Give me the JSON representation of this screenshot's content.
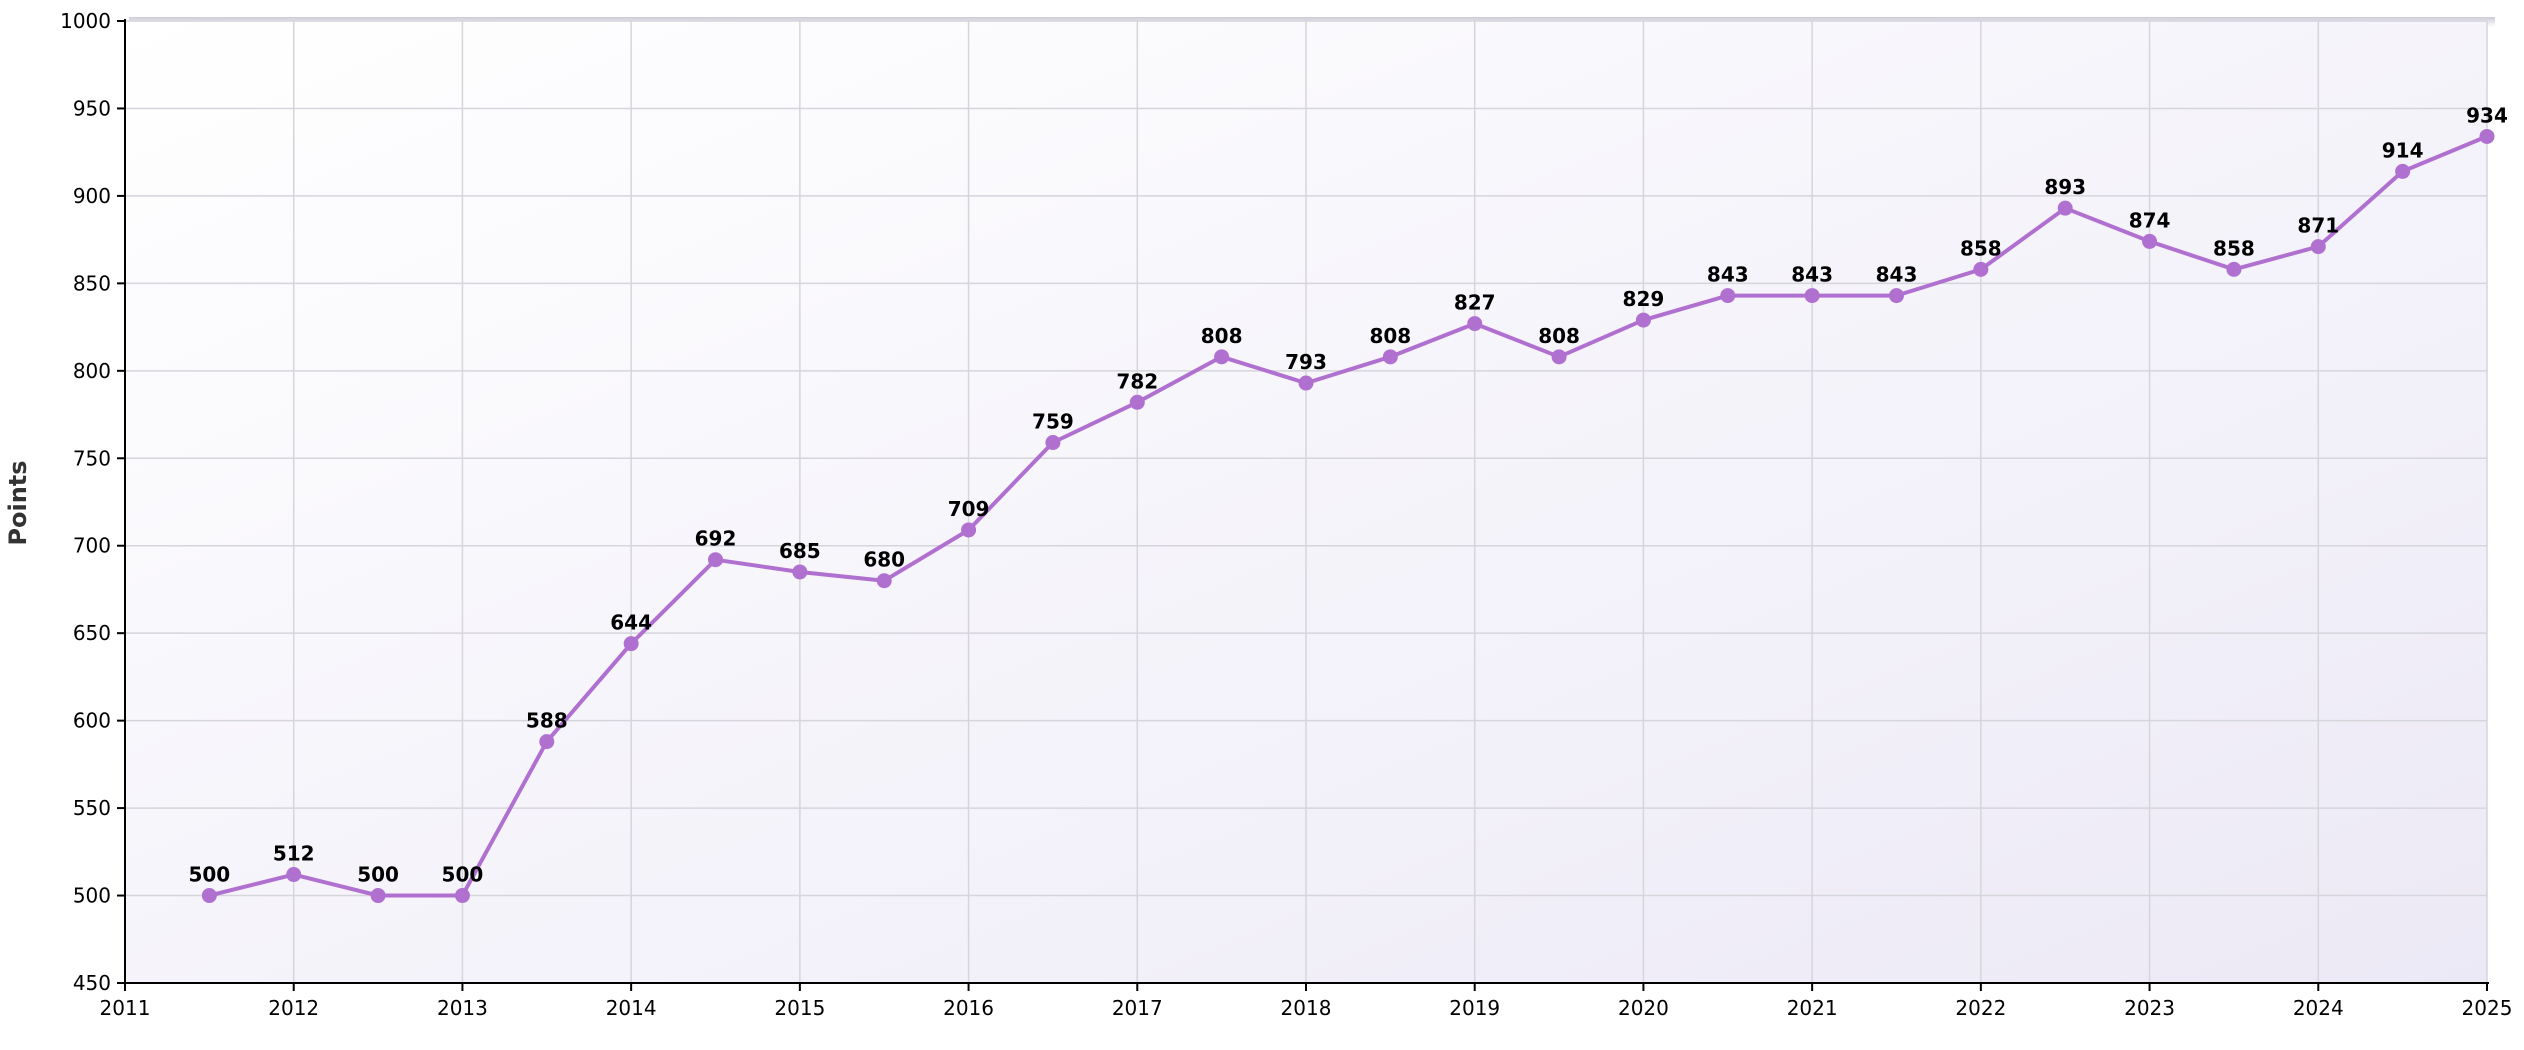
{
  "chart_data": {
    "type": "line",
    "title": "",
    "xlabel": "",
    "ylabel": "Points",
    "xlim": [
      2011,
      2025
    ],
    "ylim": [
      450,
      1000
    ],
    "x_ticks": [
      2011,
      2012,
      2013,
      2014,
      2015,
      2016,
      2017,
      2018,
      2019,
      2020,
      2021,
      2022,
      2023,
      2024,
      2025
    ],
    "y_ticks": [
      450,
      500,
      550,
      600,
      650,
      700,
      750,
      800,
      850,
      900,
      950,
      1000
    ],
    "grid": true,
    "legend": "none",
    "series": [
      {
        "color": "#b070d0",
        "x": [
          2011.5,
          2012,
          2012.5,
          2013,
          2013.5,
          2014,
          2014.5,
          2015,
          2015.5,
          2016,
          2016.5,
          2017,
          2017.5,
          2018,
          2018.5,
          2019,
          2019.5,
          2020,
          2020.5,
          2021,
          2021.5,
          2022,
          2022.5,
          2023,
          2023.5,
          2024,
          2024.5,
          2025
        ],
        "values": [
          500,
          512,
          500,
          500,
          588,
          644,
          692,
          685,
          680,
          709,
          759,
          782,
          808,
          793,
          808,
          827,
          808,
          829,
          843,
          843,
          843,
          858,
          893,
          874,
          858,
          871,
          914,
          934
        ]
      }
    ]
  }
}
